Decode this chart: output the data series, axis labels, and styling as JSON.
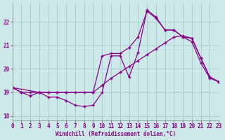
{
  "xlabel": "Windchill (Refroidissement éolien,°C)",
  "bg_color": "#cce8e8",
  "grid_color": "#aacccc",
  "line_color": "#880088",
  "xlim": [
    0,
    23
  ],
  "ylim": [
    17.8,
    22.8
  ],
  "yticks": [
    18,
    19,
    20,
    21,
    22
  ],
  "xticks": [
    0,
    1,
    2,
    3,
    4,
    5,
    6,
    7,
    8,
    9,
    10,
    11,
    12,
    13,
    14,
    15,
    16,
    17,
    18,
    19,
    20,
    21,
    22,
    23
  ],
  "series1_x": [
    0,
    1,
    2,
    3,
    4,
    5,
    6,
    7,
    8,
    9,
    10,
    11,
    12,
    13,
    14,
    15,
    16,
    17,
    18,
    19,
    20,
    21,
    22,
    23
  ],
  "series1_y": [
    19.2,
    19.0,
    18.85,
    19.0,
    18.8,
    18.8,
    18.65,
    18.45,
    18.4,
    18.45,
    19.0,
    20.55,
    20.55,
    19.65,
    20.7,
    22.5,
    22.2,
    21.65,
    21.65,
    21.35,
    21.15,
    20.25,
    19.6,
    19.45
  ],
  "series2_x": [
    0,
    3,
    4,
    5,
    6,
    9,
    10,
    11,
    12,
    13,
    14,
    15,
    16,
    17,
    18,
    19,
    20,
    21,
    22,
    23
  ],
  "series2_y": [
    19.2,
    19.0,
    19.0,
    19.0,
    19.0,
    19.0,
    20.55,
    20.65,
    20.65,
    20.9,
    21.35,
    22.45,
    22.15,
    21.65,
    21.65,
    21.35,
    21.3,
    20.45,
    19.65,
    19.45
  ],
  "series3_x": [
    0,
    1,
    2,
    3,
    4,
    5,
    6,
    7,
    8,
    9,
    10,
    11,
    12,
    13,
    14,
    15,
    16,
    17,
    18,
    19,
    20,
    21,
    22,
    23
  ],
  "series3_y": [
    19.2,
    19.0,
    19.0,
    19.0,
    19.0,
    19.0,
    19.0,
    19.0,
    19.0,
    19.0,
    19.3,
    19.6,
    19.85,
    20.1,
    20.35,
    20.6,
    20.85,
    21.1,
    21.35,
    21.4,
    21.3,
    20.45,
    19.65,
    19.45
  ]
}
